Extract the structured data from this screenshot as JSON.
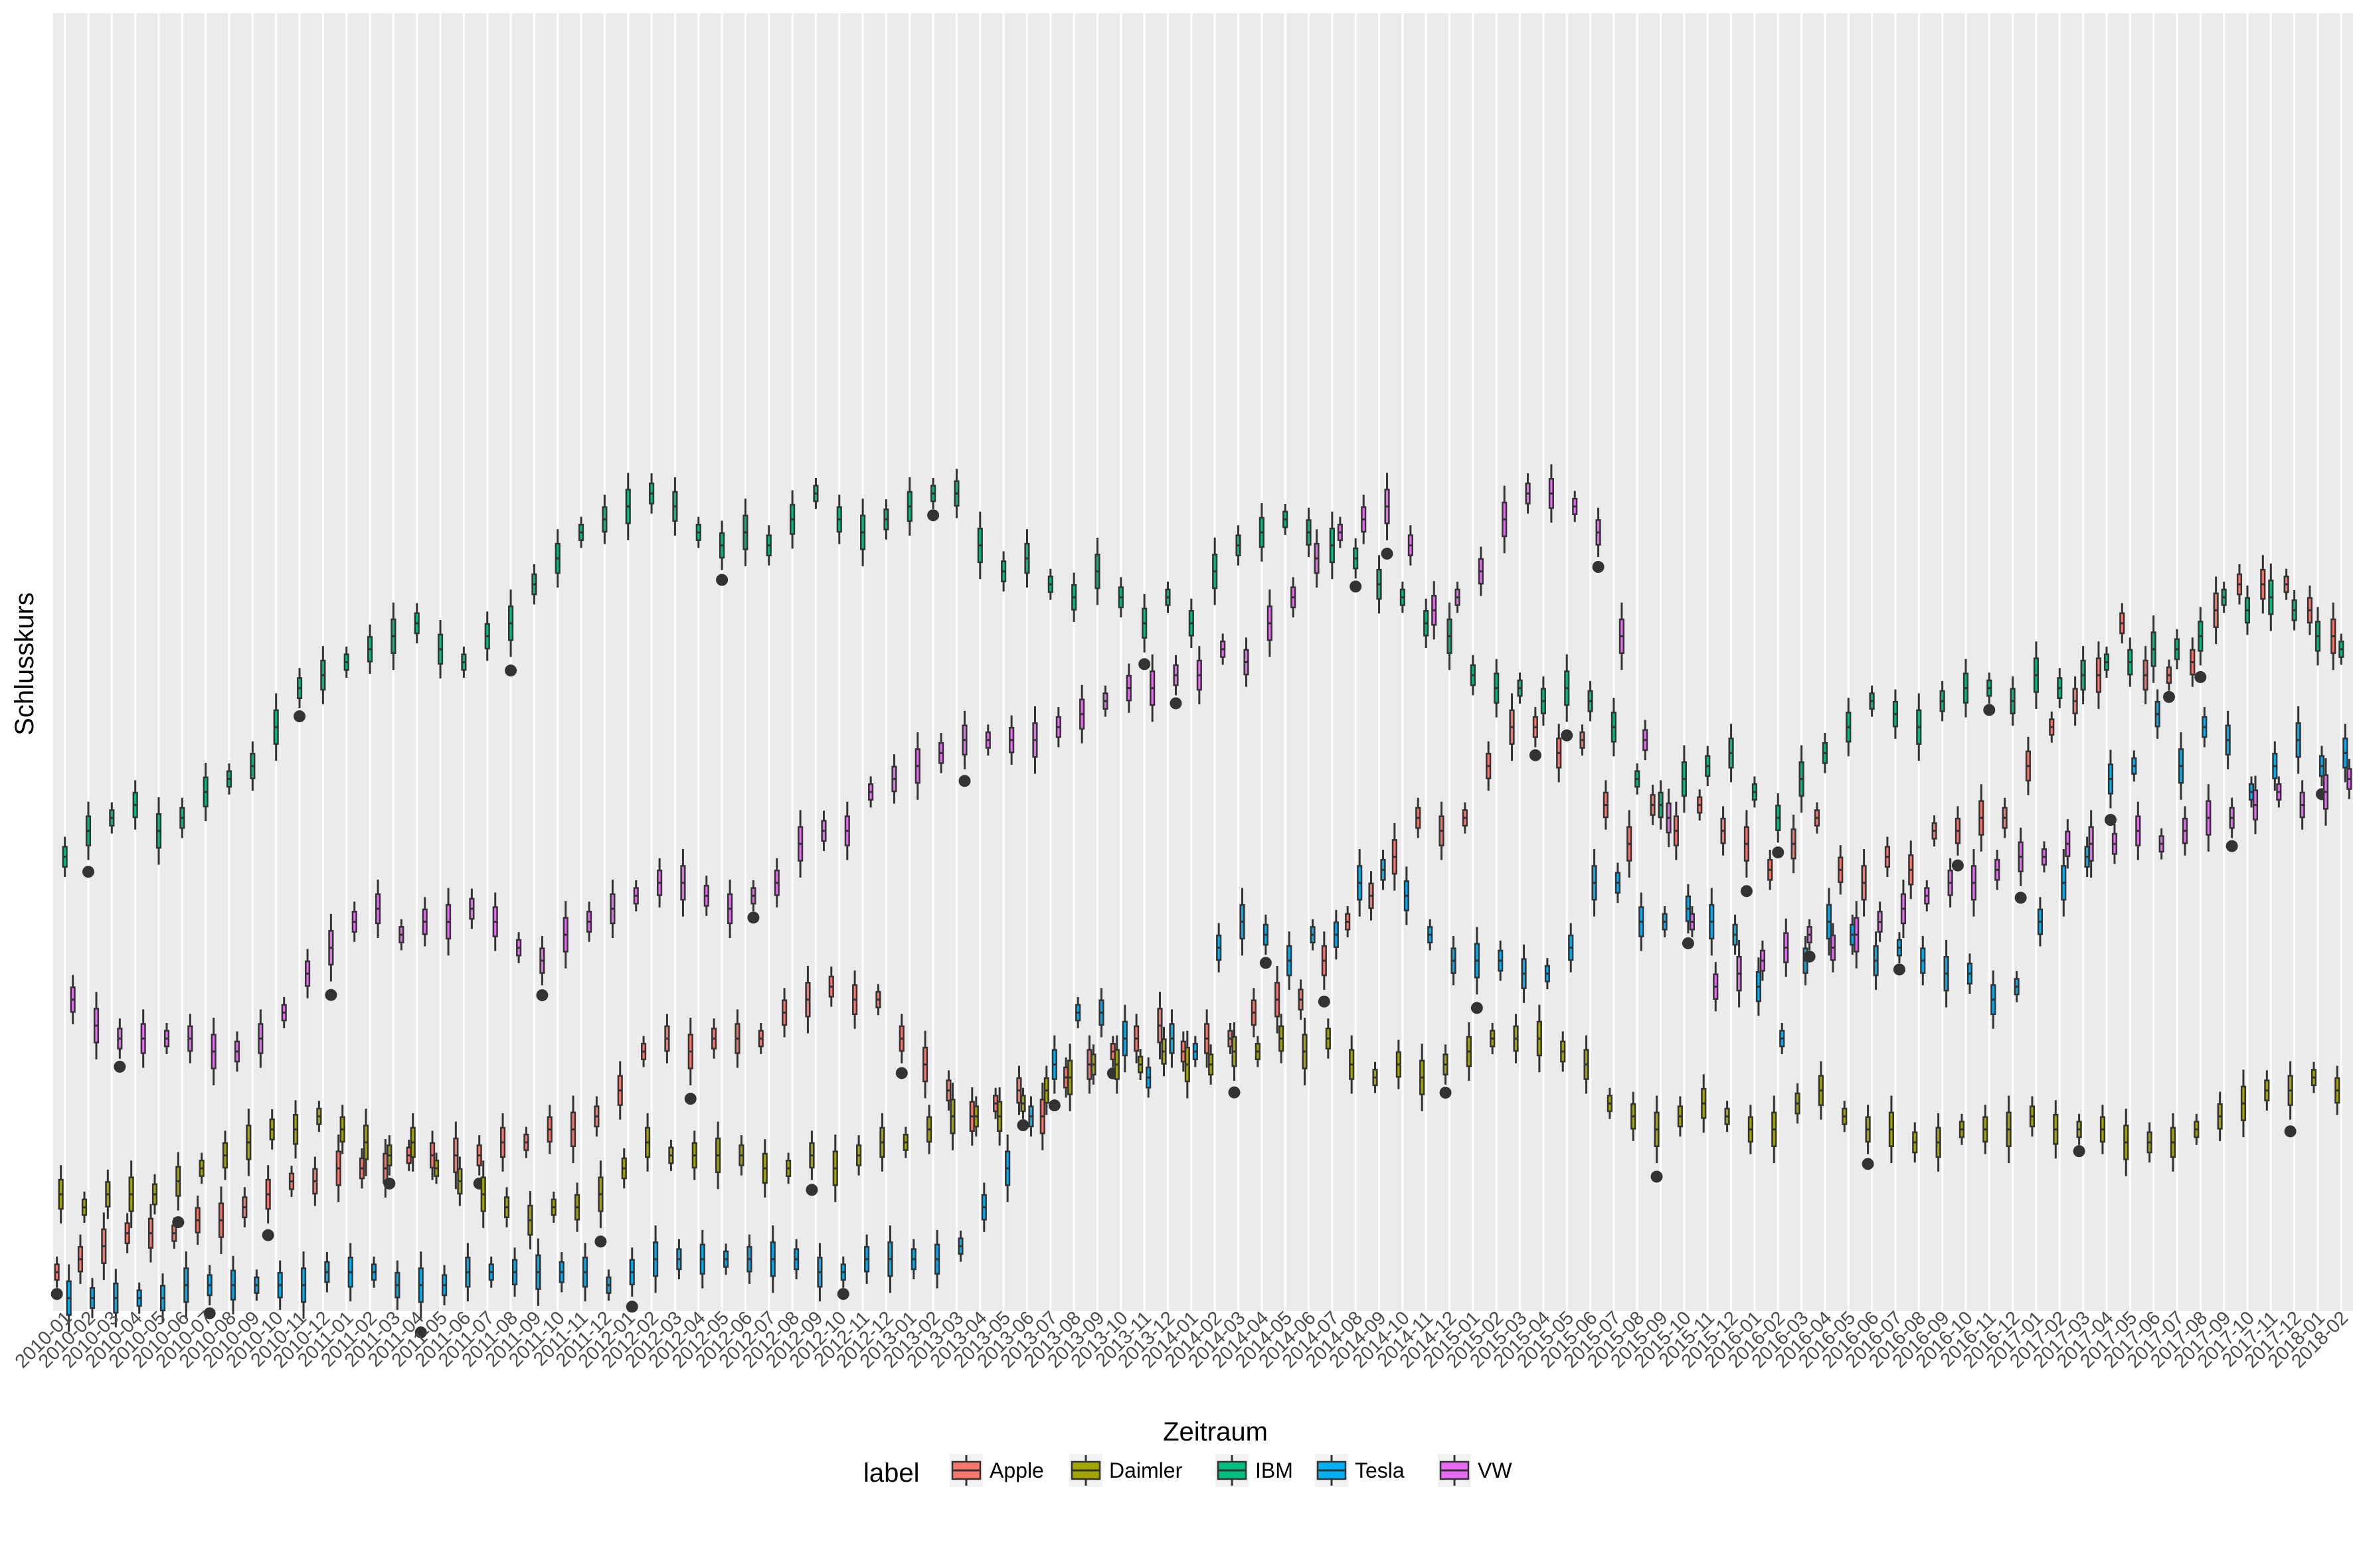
{
  "chart_data": {
    "type": "boxplot",
    "xlabel": "Zeitraum",
    "ylabel": "Schlusskurs",
    "legend": {
      "title": "label",
      "position": "bottom"
    },
    "grid": true,
    "categories": [
      "2010-01",
      "2010-02",
      "2010-03",
      "2010-04",
      "2010-05",
      "2010-06",
      "2010-07",
      "2010-08",
      "2010-09",
      "2010-10",
      "2010-11",
      "2010-12",
      "2011-01",
      "2011-02",
      "2011-03",
      "2011-04",
      "2011-05",
      "2011-06",
      "2011-07",
      "2011-08",
      "2011-09",
      "2011-10",
      "2011-11",
      "2011-12",
      "2012-01",
      "2012-02",
      "2012-03",
      "2012-04",
      "2012-05",
      "2012-06",
      "2012-07",
      "2012-08",
      "2012-09",
      "2012-10",
      "2012-11",
      "2012-12",
      "2013-01",
      "2013-02",
      "2013-03",
      "2013-04",
      "2013-05",
      "2013-06",
      "2013-07",
      "2013-08",
      "2013-09",
      "2013-10",
      "2013-11",
      "2013-12",
      "2014-01",
      "2014-02",
      "2014-03",
      "2014-04",
      "2014-05",
      "2014-06",
      "2014-07",
      "2014-08",
      "2014-09",
      "2014-10",
      "2014-11",
      "2014-12",
      "2015-01",
      "2015-02",
      "2015-03",
      "2015-04",
      "2015-05",
      "2015-06",
      "2015-07",
      "2015-08",
      "2015-09",
      "2015-10",
      "2015-11",
      "2015-12",
      "2016-01",
      "2016-02",
      "2016-03",
      "2016-04",
      "2016-05",
      "2016-06",
      "2016-07",
      "2016-08",
      "2016-09",
      "2016-10",
      "2016-11",
      "2016-12",
      "2017-01",
      "2017-02",
      "2017-03",
      "2017-04",
      "2017-05",
      "2017-06",
      "2017-07",
      "2017-08",
      "2017-09",
      "2017-10",
      "2017-11",
      "2017-12",
      "2018-01",
      "2018-02"
    ],
    "ylim": [
      0,
      100
    ],
    "series": [
      {
        "name": "Apple",
        "color": "#F8766D",
        "values": [
          3,
          4,
          5,
          6,
          6,
          6,
          7,
          7,
          8,
          9,
          10,
          10,
          11,
          11,
          11,
          12,
          12,
          12,
          12,
          13,
          13,
          14,
          14,
          15,
          17,
          20,
          21,
          20,
          21,
          21,
          21,
          23,
          24,
          25,
          24,
          24,
          21,
          19,
          17,
          15,
          16,
          17,
          15,
          18,
          19,
          20,
          21,
          22,
          20,
          21,
          21,
          23,
          24,
          24,
          27,
          30,
          32,
          35,
          38,
          37,
          38,
          42,
          45,
          45,
          43,
          44,
          39,
          36,
          39,
          37,
          39,
          37,
          36,
          34,
          36,
          38,
          34,
          33,
          35,
          34,
          37,
          37,
          38,
          38,
          42,
          45,
          47,
          49,
          53,
          49,
          49,
          50,
          54,
          56,
          56,
          56,
          54,
          52
        ]
      },
      {
        "name": "Daimler",
        "color": "#A3A500",
        "values": [
          9,
          8,
          9,
          9,
          9,
          10,
          11,
          12,
          13,
          14,
          14,
          15,
          14,
          13,
          12,
          13,
          11,
          10,
          9,
          8,
          7,
          8,
          8,
          9,
          11,
          13,
          12,
          12,
          12,
          12,
          11,
          11,
          12,
          11,
          12,
          13,
          13,
          14,
          15,
          15,
          15,
          16,
          17,
          18,
          19,
          19,
          19,
          20,
          19,
          19,
          20,
          20,
          21,
          20,
          21,
          19,
          18,
          19,
          18,
          19,
          20,
          21,
          21,
          21,
          20,
          19,
          16,
          15,
          14,
          15,
          16,
          15,
          14,
          14,
          16,
          17,
          15,
          14,
          14,
          13,
          13,
          14,
          14,
          14,
          15,
          14,
          14,
          14,
          13,
          13,
          13,
          14,
          15,
          16,
          17,
          17,
          18,
          17
        ]
      },
      {
        "name": "IBM",
        "color": "#00BF7D",
        "values": [
          35,
          37,
          38,
          39,
          37,
          38,
          40,
          41,
          42,
          45,
          48,
          49,
          50,
          51,
          52,
          53,
          51,
          50,
          52,
          53,
          56,
          58,
          60,
          61,
          62,
          63,
          62,
          60,
          59,
          60,
          59,
          61,
          63,
          61,
          60,
          61,
          62,
          63,
          63,
          59,
          57,
          58,
          56,
          55,
          57,
          55,
          53,
          55,
          53,
          57,
          59,
          60,
          61,
          60,
          59,
          58,
          56,
          55,
          53,
          52,
          49,
          48,
          48,
          47,
          48,
          47,
          45,
          41,
          39,
          41,
          42,
          43,
          40,
          38,
          41,
          43,
          45,
          47,
          46,
          45,
          47,
          48,
          48,
          47,
          49,
          48,
          49,
          50,
          50,
          51,
          51,
          52,
          55,
          54,
          55,
          54,
          52,
          51
        ]
      },
      {
        "name": "Tesla",
        "color": "#00B0F6",
        "values": [
          1,
          1,
          1,
          1,
          1,
          2,
          2,
          2,
          2,
          2,
          2,
          3,
          3,
          3,
          2,
          2,
          2,
          3,
          3,
          3,
          3,
          3,
          3,
          2,
          3,
          4,
          4,
          4,
          4,
          4,
          4,
          4,
          3,
          3,
          4,
          4,
          4,
          4,
          5,
          8,
          11,
          15,
          19,
          23,
          23,
          21,
          18,
          21,
          20,
          28,
          30,
          29,
          27,
          29,
          29,
          33,
          34,
          32,
          29,
          27,
          27,
          27,
          26,
          26,
          28,
          33,
          33,
          30,
          30,
          31,
          30,
          29,
          25,
          21,
          27,
          30,
          29,
          27,
          28,
          27,
          26,
          26,
          24,
          25,
          30,
          33,
          35,
          41,
          42,
          46,
          42,
          45,
          44,
          40,
          42,
          44,
          42,
          43
        ]
      },
      {
        "name": "VW",
        "color": "#E76BF3",
        "values": [
          24,
          22,
          21,
          21,
          21,
          21,
          20,
          20,
          21,
          23,
          26,
          28,
          30,
          31,
          29,
          30,
          30,
          31,
          30,
          28,
          27,
          29,
          30,
          31,
          32,
          33,
          33,
          32,
          31,
          32,
          33,
          36,
          37,
          37,
          40,
          41,
          42,
          43,
          44,
          44,
          44,
          44,
          45,
          46,
          47,
          48,
          48,
          49,
          49,
          51,
          50,
          53,
          55,
          58,
          60,
          61,
          62,
          59,
          54,
          55,
          57,
          61,
          63,
          63,
          62,
          60,
          52,
          44,
          38,
          30,
          25,
          26,
          27,
          28,
          29,
          28,
          29,
          30,
          31,
          32,
          33,
          33,
          34,
          35,
          35,
          36,
          36,
          36,
          37,
          36,
          37,
          38,
          38,
          39,
          40,
          39,
          40,
          41
        ]
      }
    ]
  },
  "legend_items": [
    "Apple",
    "Daimler",
    "IBM",
    "Tesla",
    "VW"
  ]
}
